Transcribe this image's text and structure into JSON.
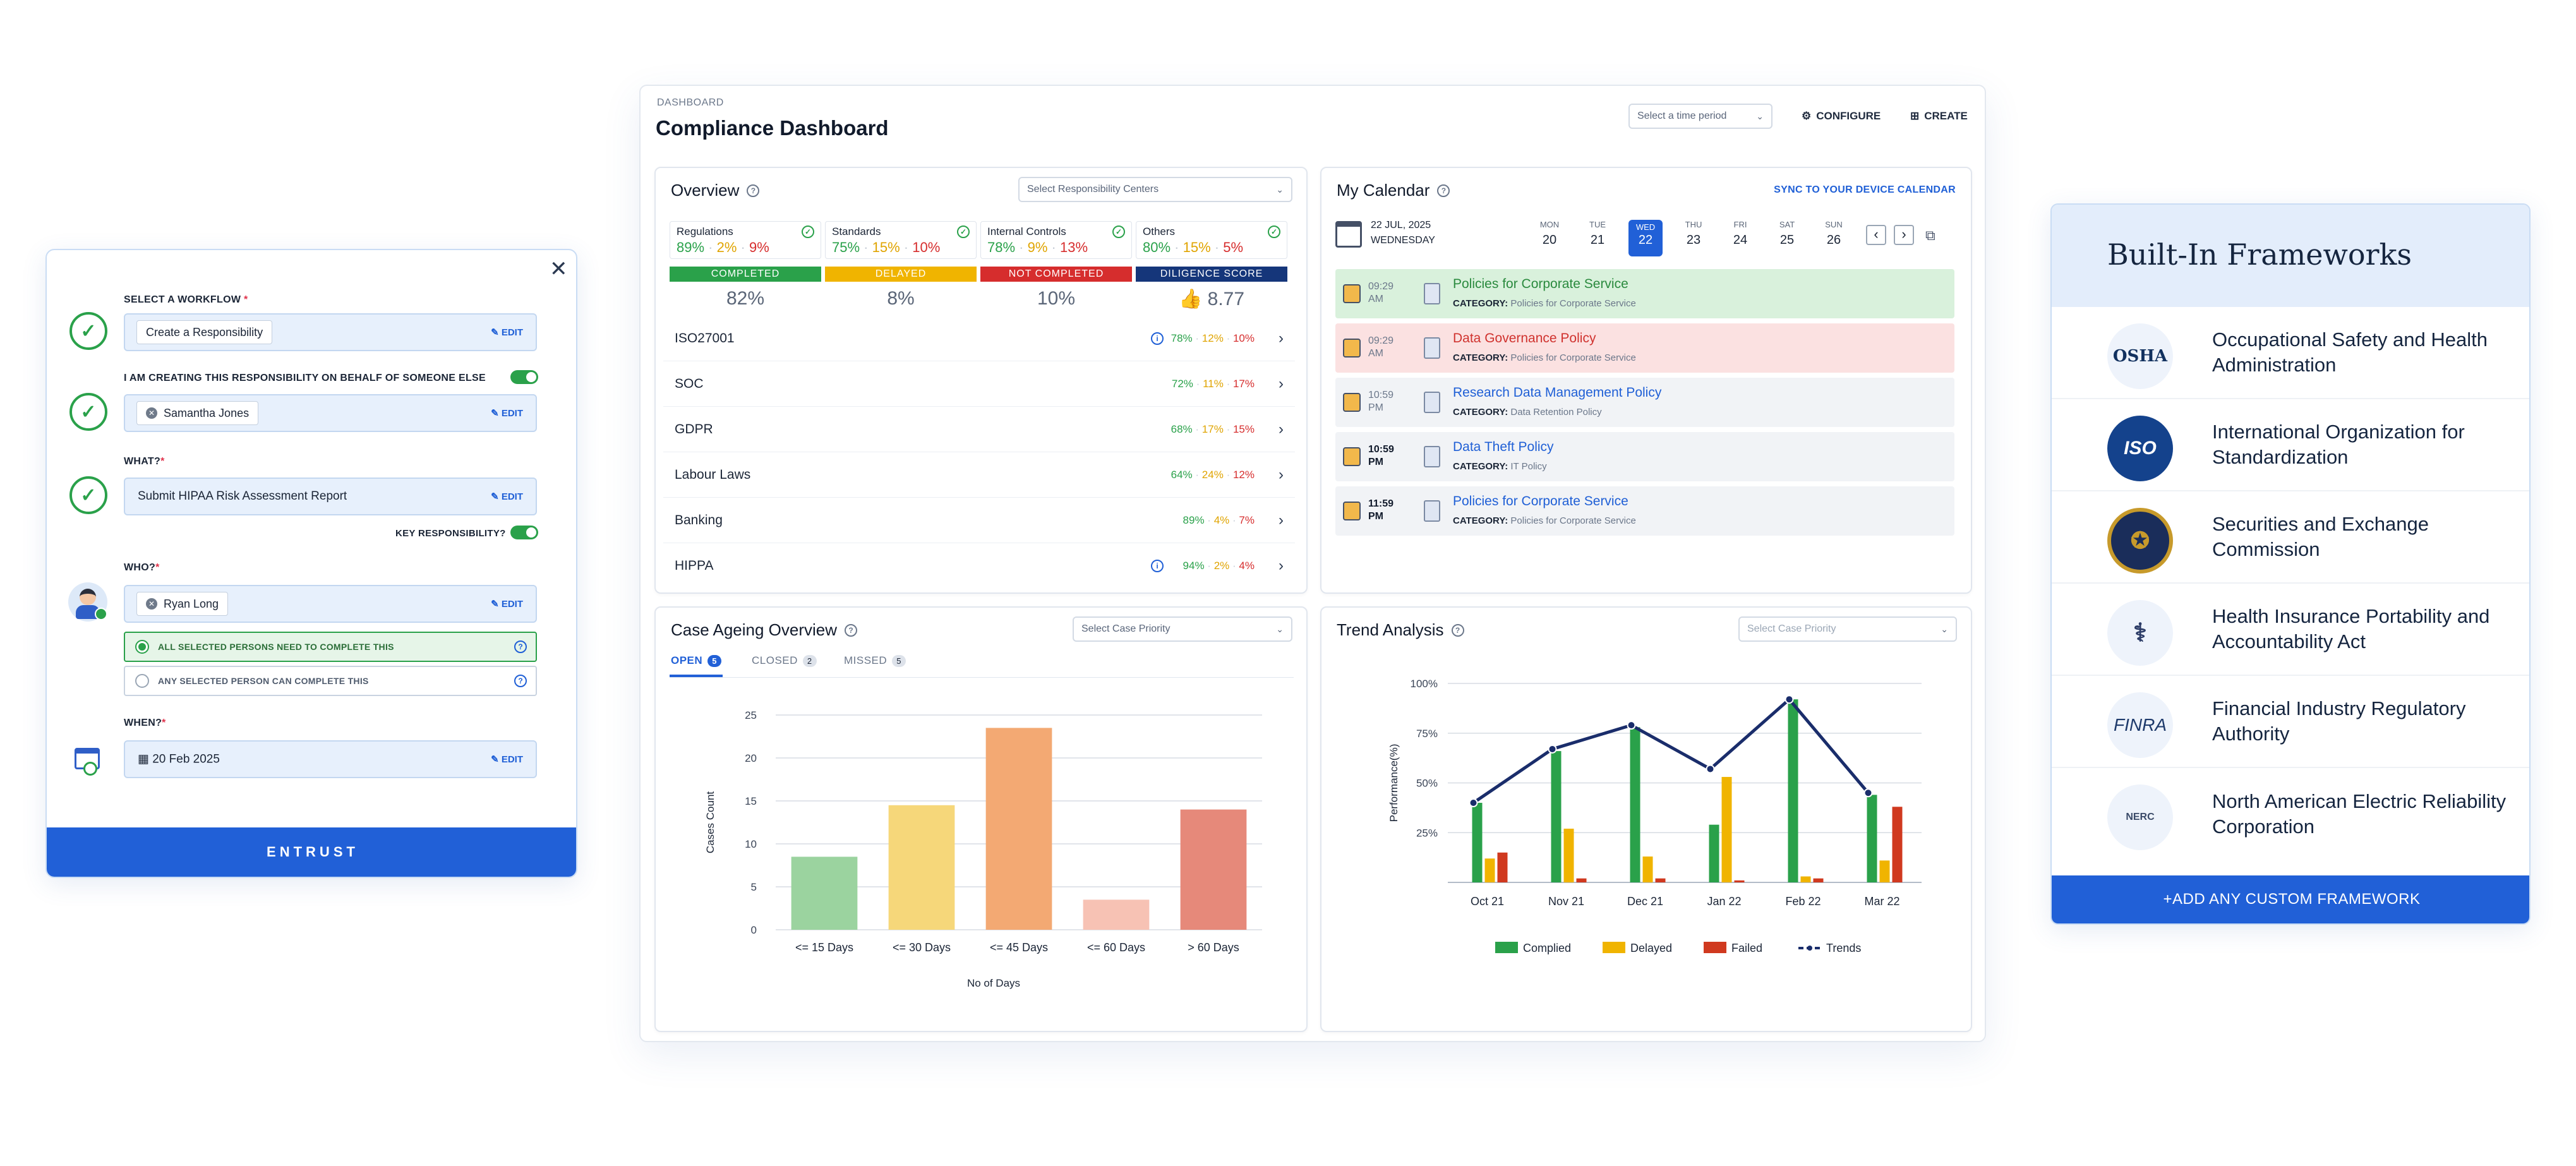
{
  "workflow": {
    "select_workflow_label": "SELECT A WORKFLOW",
    "workflow_value": "Create a Responsibility",
    "edit_label": "EDIT",
    "behalf_label": "I AM CREATING THIS RESPONSIBILITY ON BEHALF OF SOMEONE ELSE",
    "behalf_person": "Samantha Jones",
    "what_label": "WHAT?",
    "what_value": "Submit HIPAA Risk Assessment Report",
    "key_resp_label": "KEY RESPONSIBILITY?",
    "who_label": "WHO?",
    "who_person": "Ryan Long",
    "option_all": "ALL SELECTED PERSONS NEED TO COMPLETE THIS",
    "option_any": "ANY SELECTED PERSON CAN COMPLETE THIS",
    "when_label": "WHEN?",
    "when_value": "20 Feb 2025",
    "submit_label": "ENTRUST",
    "required_mark": "*"
  },
  "dashboard": {
    "breadcrumb": "DASHBOARD",
    "title": "Compliance Dashboard",
    "time_period_placeholder": "Select a time period",
    "configure_label": "CONFIGURE",
    "create_label": "CREATE"
  },
  "overview": {
    "title": "Overview",
    "select_placeholder": "Select Responsibility Centers",
    "categories": [
      {
        "name": "Regulations",
        "completed": "89%",
        "delayed": "2%",
        "not_completed": "9%"
      },
      {
        "name": "Standards",
        "completed": "75%",
        "delayed": "15%",
        "not_completed": "10%"
      },
      {
        "name": "Internal Controls",
        "completed": "78%",
        "delayed": "9%",
        "not_completed": "13%"
      },
      {
        "name": "Others",
        "completed": "80%",
        "delayed": "15%",
        "not_completed": "5%"
      }
    ],
    "status": [
      {
        "label": "COMPLETED",
        "value": "82%",
        "color": "#2aa14a"
      },
      {
        "label": "DELAYED",
        "value": "8%",
        "color": "#f0b400"
      },
      {
        "label": "NOT COMPLETED",
        "value": "10%",
        "color": "#d62d2d"
      },
      {
        "label": "DILIGENCE SCORE",
        "value": "8.77",
        "color": "#15367a"
      }
    ],
    "rows": [
      {
        "name": "ISO27001",
        "c": "78%",
        "d": "12%",
        "n": "10%"
      },
      {
        "name": "SOC",
        "c": "72%",
        "d": "11%",
        "n": "17%"
      },
      {
        "name": "GDPR",
        "c": "68%",
        "d": "17%",
        "n": "15%"
      },
      {
        "name": "Labour Laws",
        "c": "64%",
        "d": "24%",
        "n": "12%"
      },
      {
        "name": "Banking",
        "c": "89%",
        "d": "4%",
        "n": "7%"
      },
      {
        "name": "HIPPA",
        "c": "94%",
        "d": "2%",
        "n": "4%"
      }
    ]
  },
  "calendar": {
    "title": "My Calendar",
    "sync_label": "SYNC TO YOUR DEVICE CALENDAR",
    "date": "22 JUL, 2025",
    "weekday": "WEDNESDAY",
    "days": [
      {
        "d": "MON",
        "n": "20"
      },
      {
        "d": "TUE",
        "n": "21"
      },
      {
        "d": "WED",
        "n": "22"
      },
      {
        "d": "THU",
        "n": "23"
      },
      {
        "d": "FRI",
        "n": "24"
      },
      {
        "d": "SAT",
        "n": "25"
      },
      {
        "d": "SUN",
        "n": "26"
      }
    ],
    "category_label": "CATEGORY:",
    "events": [
      {
        "time": "09:29",
        "ampm": "AM",
        "title": "Policies for Corporate Service",
        "category": "Policies for Corporate Service"
      },
      {
        "time": "09:29",
        "ampm": "AM",
        "title": "Data Governance Policy",
        "category": "Policies for Corporate Service"
      },
      {
        "time": "10:59",
        "ampm": "PM",
        "title": "Research Data Management Policy",
        "category": "Data Retention Policy"
      },
      {
        "time": "10:59",
        "ampm": "PM",
        "title": "Data Theft Policy",
        "category": "IT Policy"
      },
      {
        "time": "11:59",
        "ampm": "PM",
        "title": "Policies for Corporate Service",
        "category": "Policies for Corporate Service"
      }
    ]
  },
  "case_ageing": {
    "title": "Case Ageing Overview",
    "select_placeholder": "Select Case Priority",
    "tabs": [
      {
        "label": "OPEN",
        "count": "5"
      },
      {
        "label": "CLOSED",
        "count": "2"
      },
      {
        "label": "MISSED",
        "count": "5"
      }
    ]
  },
  "trend": {
    "title": "Trend Analysis",
    "select_placeholder": "Select Case Priority"
  },
  "chart_data": [
    {
      "type": "bar",
      "categories": [
        "<= 15 Days",
        "<= 30 Days",
        "<= 45 Days",
        "<= 60 Days",
        "> 60 Days"
      ],
      "values": [
        8.5,
        14.5,
        23.5,
        3.5,
        14
      ],
      "colors": [
        "#9bd39f",
        "#f6d77a",
        "#f3a973",
        "#f7c2b4",
        "#e6897a"
      ],
      "xlabel": "No of Days",
      "ylabel": "Cases Count",
      "yticks": [
        "0",
        "5",
        "10",
        "15",
        "20",
        "25"
      ],
      "ylim": [
        0,
        25
      ],
      "grid": true
    },
    {
      "type": "bar",
      "categories": [
        "Oct 21",
        "Nov 21",
        "Dec 21",
        "Jan 22",
        "Feb 22",
        "Mar 22"
      ],
      "series": [
        {
          "name": "Complied",
          "values": [
            40,
            66,
            78,
            29,
            92,
            44
          ],
          "color": "#2aa14a"
        },
        {
          "name": "Delayed",
          "values": [
            12,
            27,
            13,
            53,
            3,
            11
          ],
          "color": "#f0b400"
        },
        {
          "name": "Failed",
          "values": [
            15,
            2,
            2,
            1,
            2,
            38
          ],
          "color": "#d0391f"
        },
        {
          "name": "Trends",
          "values": [
            40,
            67,
            79,
            57,
            92,
            45
          ],
          "color": "#1a2d6b",
          "kind": "line"
        }
      ],
      "ylabel": "Performance(%)",
      "yticks": [
        "25%",
        "50%",
        "75%",
        "100%"
      ],
      "ylim": [
        0,
        100
      ],
      "legend": "bottom",
      "grid": true
    }
  ],
  "frameworks": {
    "title": "Built-In Frameworks",
    "items": [
      {
        "name": "Occupational Safety and Health Administration",
        "logo": "OSHA"
      },
      {
        "name": "International Organization for Standardization",
        "logo": "ISO"
      },
      {
        "name": "Securities and Exchange Commission",
        "logo": "SEC-seal"
      },
      {
        "name": "Health Insurance Portability and Accountability Act",
        "logo": "HIPAA"
      },
      {
        "name": "Financial Industry Regulatory Authority",
        "logo": "FINRA"
      },
      {
        "name": "North American Electric Reliability Corporation",
        "logo": "NERC"
      }
    ],
    "logo_text": {
      "osha": "OSHA",
      "iso": "ISO",
      "finra": "FINRA",
      "nerc": "NERC"
    },
    "add_label": "+ADD ANY CUSTOM FRAMEWORK"
  }
}
